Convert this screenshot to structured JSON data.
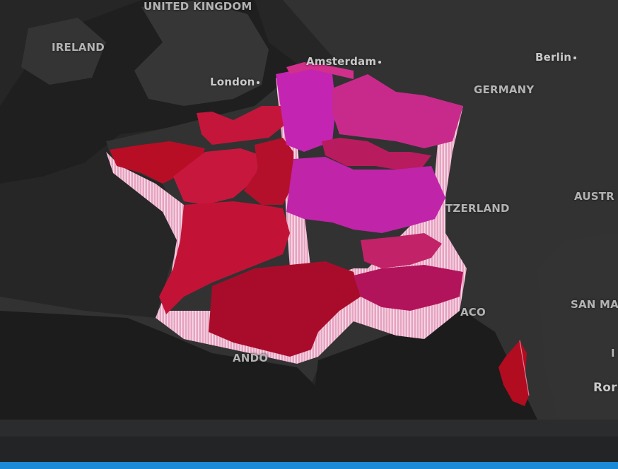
{
  "labels": {
    "uk": "UNITED KINGDOM",
    "ireland": "IRELAND",
    "london": "London",
    "amsterdam": "Amsterdam",
    "berlin": "Berlin",
    "germany": "GERMANY",
    "switzerland": "TZERLAND",
    "austria": "AUSTR",
    "san_marino": "SAN MA",
    "monaco": "ACO",
    "andorra": "ANDO",
    "rome": "Ror",
    "italy": "I"
  },
  "colors": {
    "background": "#262626",
    "land": "#303030",
    "sea": "#1e1e1e",
    "red_low": "#b3102a",
    "crimson": "#cc1840",
    "magenta_high": "#c21ca6",
    "pink_mid": "#cf2b80",
    "accent_bar": "#1b8ad6"
  }
}
